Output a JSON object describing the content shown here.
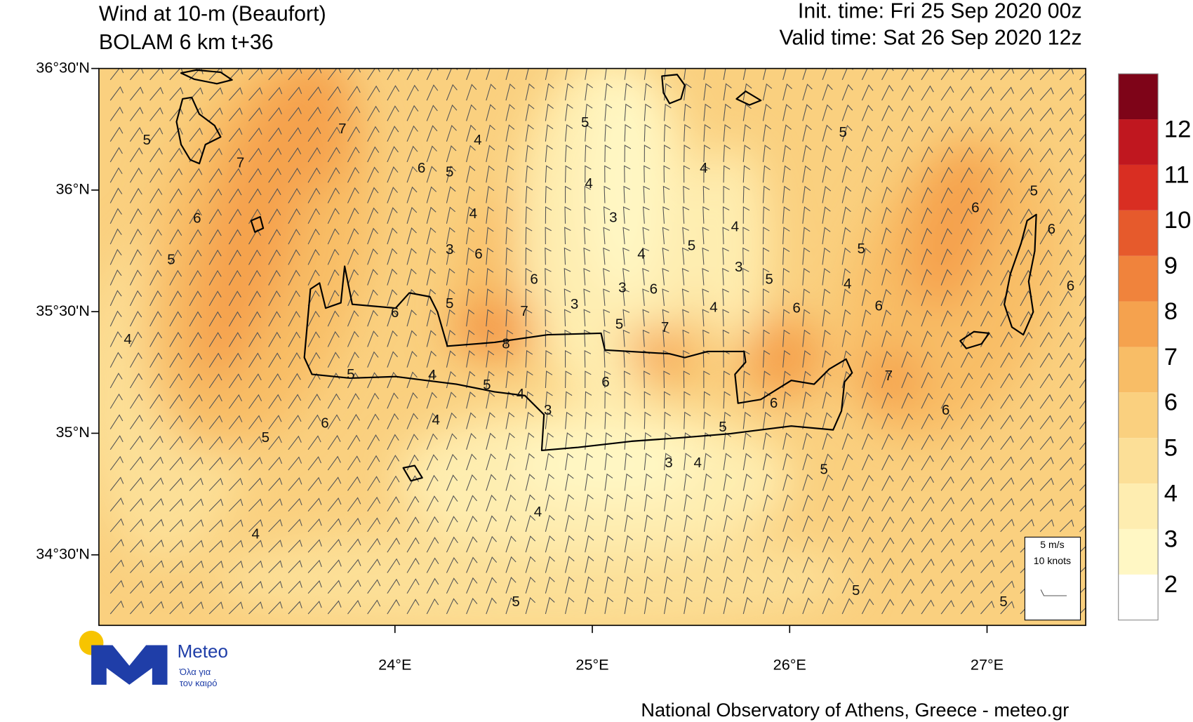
{
  "header": {
    "title": [
      "Wind at 10-m (Beaufort)",
      "BOLAM 6 km t+36"
    ],
    "init_time": "Init. time: Fri 25 Sep 2020 00z",
    "valid_time": "Valid time: Sat 26 Sep 2020 12z"
  },
  "map": {
    "xlim": [
      22.5,
      27.5
    ],
    "ylim": [
      34.21,
      36.5
    ],
    "xticks": [
      {
        "value": 24,
        "label": "24°E"
      },
      {
        "value": 25,
        "label": "25°E"
      },
      {
        "value": 26,
        "label": "26°E"
      },
      {
        "value": 27,
        "label": "27°E"
      }
    ],
    "yticks": [
      {
        "value": 36.5,
        "label": "36°30'N"
      },
      {
        "value": 36,
        "label": "36°N"
      },
      {
        "value": 35.5,
        "label": "35°30'N"
      },
      {
        "value": 35,
        "label": "35°N"
      },
      {
        "value": 34.5,
        "label": "34°30'N"
      }
    ],
    "contour_labels": [
      5,
      7,
      7,
      4,
      6,
      5,
      5,
      4,
      4,
      5,
      6,
      4,
      3,
      4,
      5,
      5,
      6,
      5,
      6,
      5,
      3,
      6,
      4,
      3,
      5,
      4,
      6,
      6,
      3,
      6,
      3,
      4,
      6,
      6,
      6,
      5,
      7,
      5,
      7,
      4,
      8,
      5,
      4,
      5,
      4,
      6,
      7,
      6,
      6,
      3,
      4,
      6,
      5,
      5,
      3,
      4,
      5,
      4,
      4,
      5,
      5,
      5
    ]
  },
  "colorbar": {
    "levels": [
      2,
      3,
      4,
      5,
      6,
      7,
      8,
      9,
      10,
      11,
      12
    ],
    "colors": [
      "#ffffff",
      "#fff7c4",
      "#feedb0",
      "#fcdf97",
      "#fad07f",
      "#f8bd66",
      "#f5a24e",
      "#f0833c",
      "#e65a2c",
      "#d92e22",
      "#c0171f",
      "#7e0418"
    ]
  },
  "reference_vector": {
    "speed": "5 m/s",
    "knots": "10 knots"
  },
  "logo": {
    "name": "Meteo",
    "tagline": [
      "Όλα για",
      "τον καιρό"
    ]
  },
  "footer": "National Observatory of Athens, Greece - meteo.gr"
}
